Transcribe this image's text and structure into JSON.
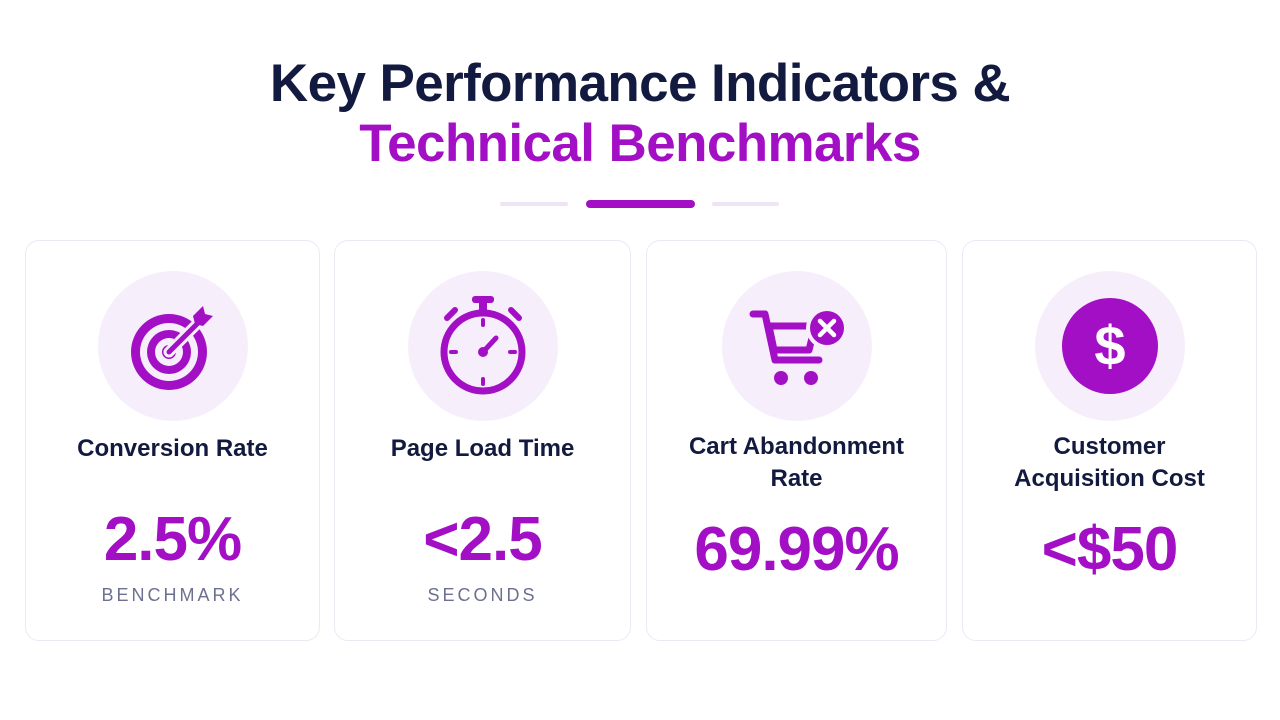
{
  "title": {
    "line1": "Key Performance Indicators &",
    "line2": "Technical Benchmarks"
  },
  "colors": {
    "accent": "#a30fc4",
    "heading": "#131a3f",
    "icon_bg": "#f7eefb",
    "muted": "#6d7090"
  },
  "cards": [
    {
      "icon": "target-icon",
      "label": "Conversion Rate",
      "value": "2.5%",
      "unit": "BENCHMARK"
    },
    {
      "icon": "stopwatch-icon",
      "label": "Page Load Time",
      "value": "<2.5",
      "unit": "SECONDS"
    },
    {
      "icon": "cart-remove-icon",
      "label_line1": "Cart Abandonment",
      "label_line2": "Rate",
      "value": "69.99%"
    },
    {
      "icon": "dollar-coin-icon",
      "label_line1": "Customer",
      "label_line2": "Acquisition Cost",
      "value": "<$50"
    }
  ]
}
